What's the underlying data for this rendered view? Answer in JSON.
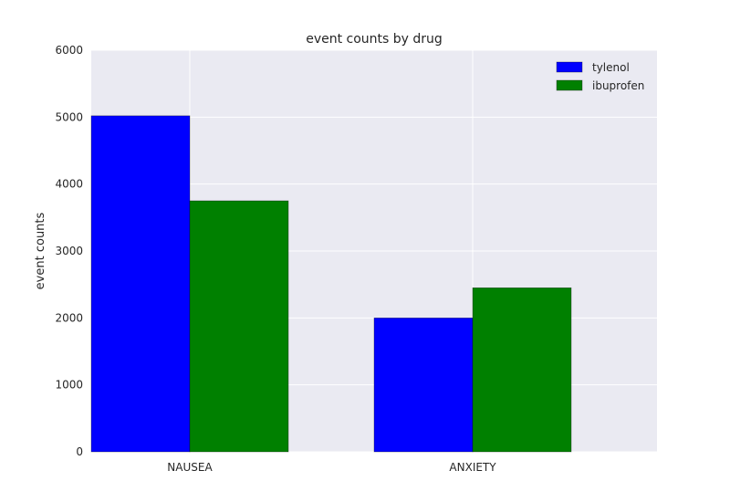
{
  "chart_data": {
    "type": "bar",
    "title": "event counts by drug",
    "xlabel": "",
    "ylabel": "event counts",
    "categories": [
      "NAUSEA",
      "ANXIETY"
    ],
    "series": [
      {
        "name": "tylenol",
        "values": [
          5020,
          2000
        ],
        "color": "#0000ff"
      },
      {
        "name": "ibuprofen",
        "values": [
          3750,
          2450
        ],
        "color": "#008000"
      }
    ],
    "ylim": [
      0,
      6000
    ],
    "yticks": [
      0,
      1000,
      2000,
      3000,
      4000,
      5000,
      6000
    ],
    "grid": true,
    "legend_position": "top-right",
    "colors": {
      "plot_background": "#eaeaf2",
      "grid": "#ffffff",
      "text": "#262626"
    }
  }
}
